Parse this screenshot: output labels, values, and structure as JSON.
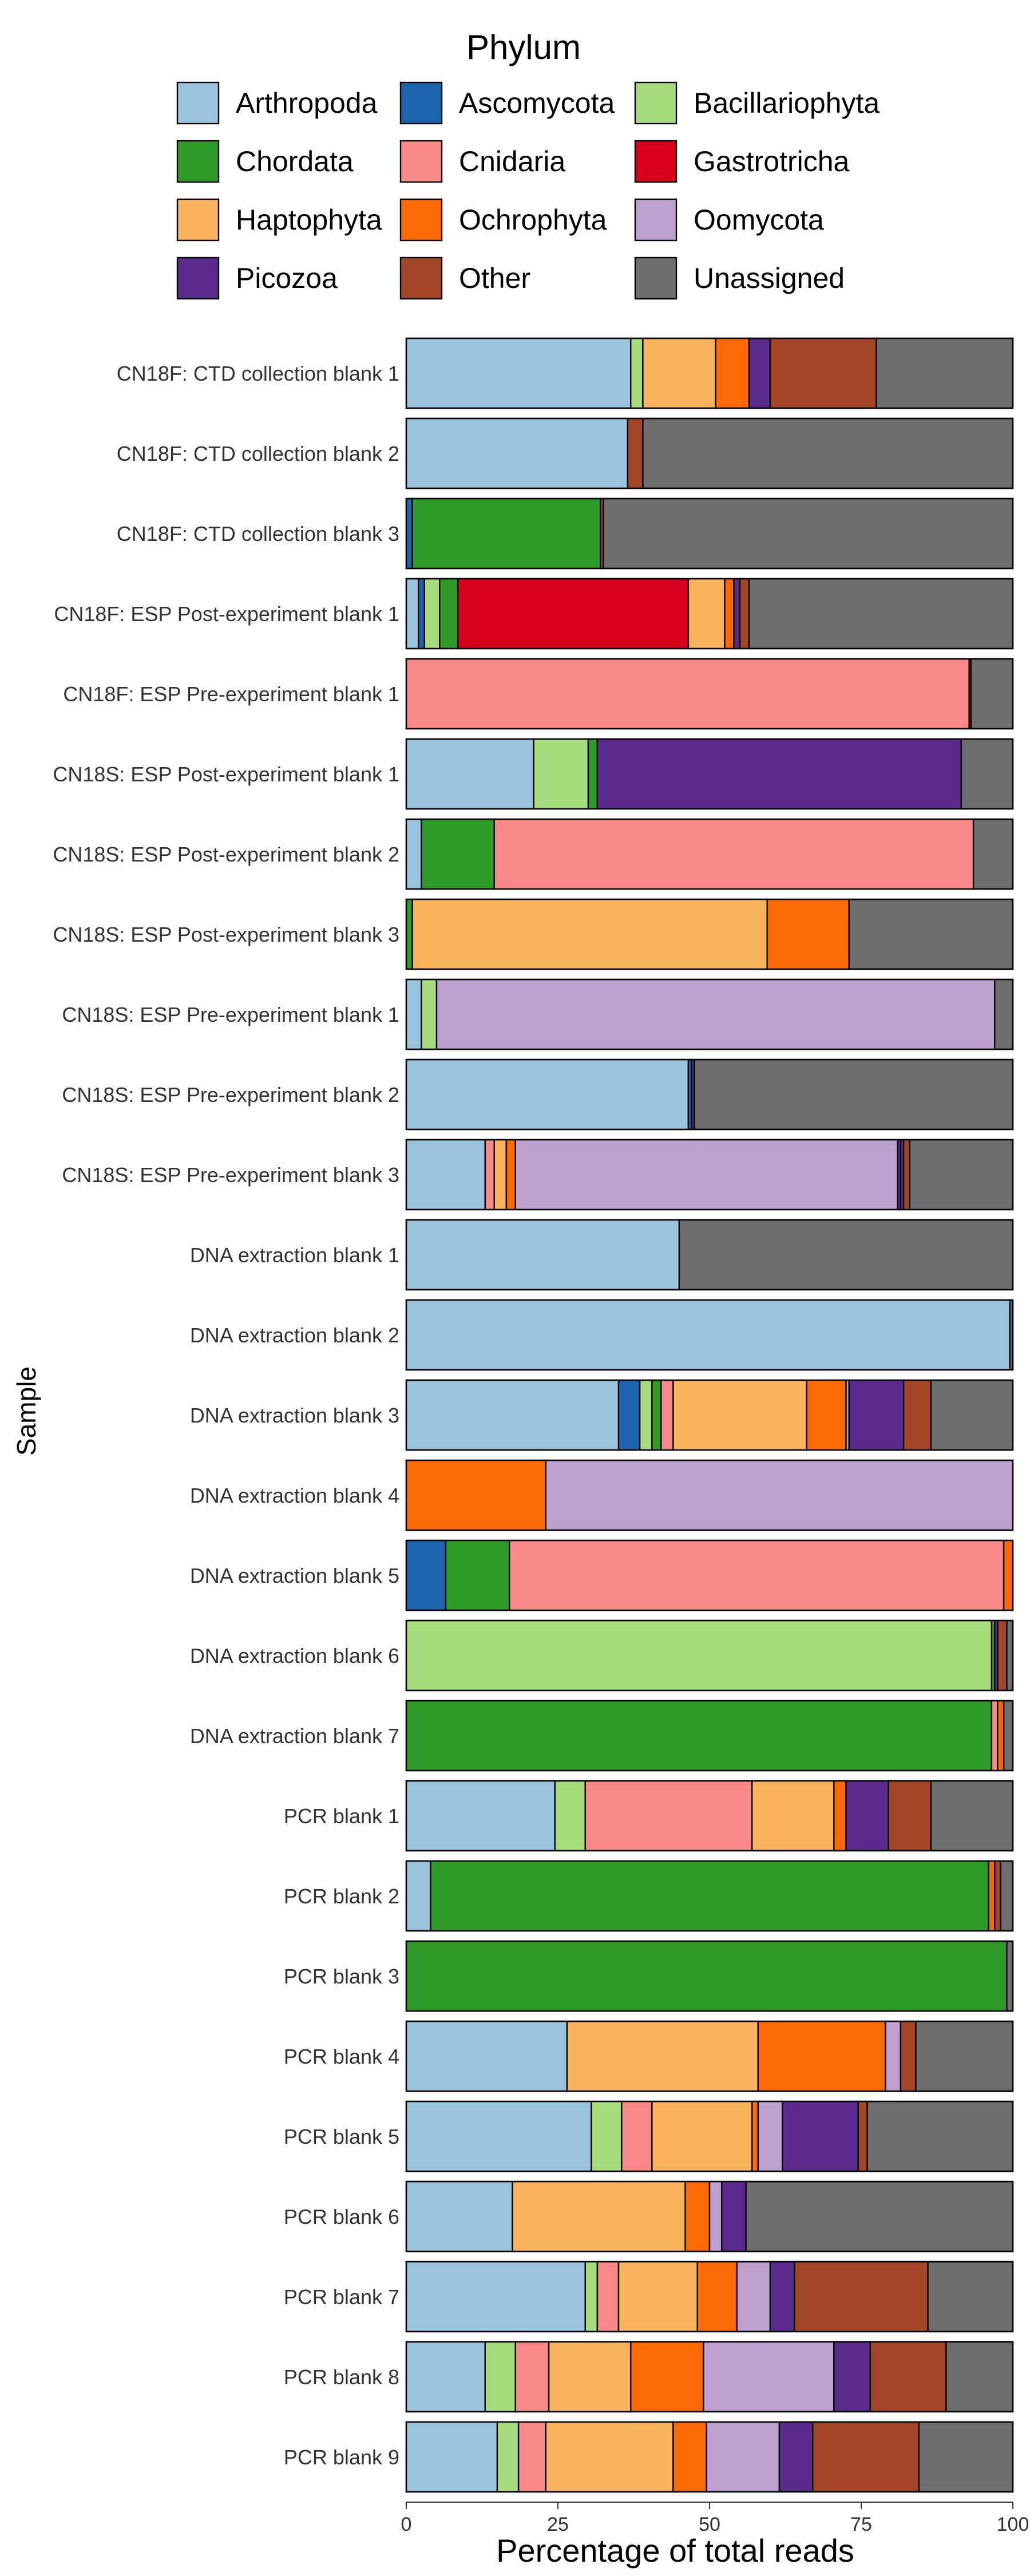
{
  "chart_data": {
    "type": "bar",
    "orientation": "horizontal",
    "stacked": true,
    "legend": {
      "title": "Phylum",
      "placement": "top",
      "columns": 3
    },
    "xlabel": "Percentage of total reads",
    "ylabel": "Sample",
    "xlim": [
      0,
      100
    ],
    "xticks": [
      "0",
      "25",
      "50",
      "75",
      "100"
    ],
    "grid": false,
    "series": [
      {
        "name": "Arthropoda",
        "color": "#9ac4de"
      },
      {
        "name": "Ascomycota",
        "color": "#1c65ac"
      },
      {
        "name": "Bacillariophyta",
        "color": "#a6dc7c"
      },
      {
        "name": "Chordata",
        "color": "#2e9a27"
      },
      {
        "name": "Cnidaria",
        "color": "#f98888"
      },
      {
        "name": "Gastrotricha",
        "color": "#d7001b"
      },
      {
        "name": "Haptophyta",
        "color": "#fab35d"
      },
      {
        "name": "Ochrophyta",
        "color": "#fd6a05"
      },
      {
        "name": "Oomycota",
        "color": "#bea0cf"
      },
      {
        "name": "Picozoa",
        "color": "#5a2a8c"
      },
      {
        "name": "Other",
        "color": "#a24626"
      },
      {
        "name": "Unassigned",
        "color": "#6e6e6e"
      }
    ],
    "samples": [
      {
        "label": "CN18F: CTD collection blank 1",
        "values": {
          "Arthropoda": 37,
          "Bacillariophyta": 2,
          "Haptophyta": 12,
          "Ochrophyta": 5.5,
          "Picozoa": 3.5,
          "Other": 17.5,
          "Unassigned": 22.5
        }
      },
      {
        "label": "CN18F: CTD collection blank 2",
        "values": {
          "Arthropoda": 36.5,
          "Other": 2.5,
          "Unassigned": 61
        }
      },
      {
        "label": "CN18F: CTD collection blank 3",
        "values": {
          "Ascomycota": 1,
          "Chordata": 31,
          "Other": 0.5,
          "Unassigned": 67.5
        }
      },
      {
        "label": "CN18F: ESP Post-experiment blank 1",
        "values": {
          "Arthropoda": 2,
          "Ascomycota": 1,
          "Bacillariophyta": 2.5,
          "Chordata": 3,
          "Gastrotricha": 38,
          "Haptophyta": 6,
          "Ochrophyta": 1.5,
          "Picozoa": 1,
          "Other": 1.5,
          "Unassigned": 43.5
        }
      },
      {
        "label": "CN18F: ESP Pre-experiment blank 1",
        "values": {
          "Cnidaria": 92.8,
          "Other": 0.3,
          "Unassigned": 6.9
        }
      },
      {
        "label": "CN18S: ESP Post-experiment blank 1",
        "values": {
          "Arthropoda": 21,
          "Bacillariophyta": 9,
          "Chordata": 1.5,
          "Picozoa": 60,
          "Unassigned": 8.5
        }
      },
      {
        "label": "CN18S: ESP Post-experiment blank 2",
        "values": {
          "Arthropoda": 2.5,
          "Chordata": 12,
          "Cnidaria": 79,
          "Unassigned": 6.5
        }
      },
      {
        "label": "CN18S: ESP Post-experiment blank 3",
        "values": {
          "Chordata": 1,
          "Haptophyta": 58.5,
          "Ochrophyta": 13.5,
          "Unassigned": 27
        }
      },
      {
        "label": "CN18S: ESP Pre-experiment blank 1",
        "values": {
          "Arthropoda": 2.5,
          "Bacillariophyta": 2.5,
          "Oomycota": 92,
          "Unassigned": 3
        }
      },
      {
        "label": "CN18S: ESP Pre-experiment blank 2",
        "values": {
          "Arthropoda": 46.5,
          "Ascomycota": 0.5,
          "Picozoa": 0.5,
          "Unassigned": 52.5
        }
      },
      {
        "label": "CN18S: ESP Pre-experiment blank 3",
        "values": {
          "Arthropoda": 13,
          "Picozoa": 0.5,
          "Cnidaria": 1.5,
          "Haptophyta": 2,
          "Ochrophyta": 1.5,
          "Oomycota": 63,
          "Picozoa ": 0.5,
          "Other": 1,
          "Unassigned": 17
        }
      },
      {
        "label": "DNA extraction blank 1",
        "values": {
          "Arthropoda": 45,
          "Unassigned": 55
        }
      },
      {
        "label": "DNA extraction blank 2",
        "values": {
          "Arthropoda": 99.5,
          "Unassigned": 0.5
        }
      },
      {
        "label": "DNA extraction blank 3",
        "values": {
          "Arthropoda": 35,
          "Ascomycota": 3.5,
          "Bacillariophyta": 2,
          "Chordata": 1.5,
          "Cnidaria": 2,
          "Haptophyta": 22,
          "Ochrophyta": 6.5,
          "Oomycota": 0.5,
          "Picozoa": 9,
          "Other": 4.5,
          "Unassigned": 13.5
        }
      },
      {
        "label": "DNA extraction blank 4",
        "values": {
          "Ochrophyta": 23,
          "Oomycota": 77
        }
      },
      {
        "label": "DNA extraction blank 5",
        "values": {
          "Ascomycota": 6.5,
          "Chordata": 10.5,
          "Cnidaria": 81.5,
          "Ochrophyta": 1.5
        }
      },
      {
        "label": "DNA extraction blank 6",
        "values": {
          "Chordata": 0.5,
          "Bacillariophyta": 96.5,
          "Picozoa": 0.5,
          "Other": 1.5,
          "Unassigned": 1
        }
      },
      {
        "label": "DNA extraction blank 7",
        "values": {
          "Chordata": 96.5,
          "Cnidaria": 1,
          "Ochrophyta": 1,
          "Unassigned": 1.5
        }
      },
      {
        "label": "PCR blank 1",
        "values": {
          "Arthropoda": 24.5,
          "Bacillariophyta": 5,
          "Cnidaria": 27.5,
          "Haptophyta": 13.5,
          "Ochrophyta": 2,
          "Picozoa": 7,
          "Other": 7,
          "Unassigned": 13.5
        }
      },
      {
        "label": "PCR blank 2",
        "values": {
          "Arthropoda": 4,
          "Chordata": 92,
          "Ochrophyta": 1,
          "Other": 1,
          "Unassigned": 2
        }
      },
      {
        "label": "PCR blank 3",
        "values": {
          "Chordata": 99,
          "Unassigned": 1
        }
      },
      {
        "label": "PCR blank 4",
        "values": {
          "Arthropoda": 26.5,
          "Haptophyta": 31.5,
          "Ochrophyta": 21,
          "Oomycota": 2.5,
          "Other": 2.5,
          "Unassigned": 16
        }
      },
      {
        "label": "PCR blank 5",
        "values": {
          "Arthropoda": 30.5,
          "Bacillariophyta": 5,
          "Cnidaria": 5,
          "Haptophyta": 16.5,
          "Ochrophyta": 1,
          "Oomycota": 4,
          "Picozoa": 12.5,
          "Other": 1.5,
          "Unassigned": 24
        }
      },
      {
        "label": "PCR blank 6",
        "values": {
          "Arthropoda": 17.5,
          "Haptophyta": 28.5,
          "Ochrophyta": 4,
          "Oomycota": 2,
          "Picozoa": 4,
          "Unassigned": 44
        }
      },
      {
        "label": "PCR blank 7",
        "values": {
          "Arthropoda": 29.5,
          "Bacillariophyta": 2,
          "Cnidaria": 3.5,
          "Haptophyta": 13,
          "Ochrophyta": 6.5,
          "Oomycota": 5.5,
          "Picozoa": 4,
          "Other": 22,
          "Unassigned": 14
        }
      },
      {
        "label": "PCR blank 8",
        "values": {
          "Arthropoda": 13,
          "Bacillariophyta": 5,
          "Cnidaria": 5.5,
          "Haptophyta": 13.5,
          "Ochrophyta": 12,
          "Oomycota": 21.5,
          "Picozoa": 6,
          "Other": 12.5,
          "Unassigned": 11
        }
      },
      {
        "label": "PCR blank 9",
        "values": {
          "Arthropoda": 15,
          "Bacillariophyta": 3.5,
          "Cnidaria": 4.5,
          "Haptophyta": 21,
          "Ochrophyta": 5.5,
          "Oomycota": 12,
          "Picozoa": 5.5,
          "Other": 17.5,
          "Unassigned": 15.5
        }
      }
    ]
  }
}
